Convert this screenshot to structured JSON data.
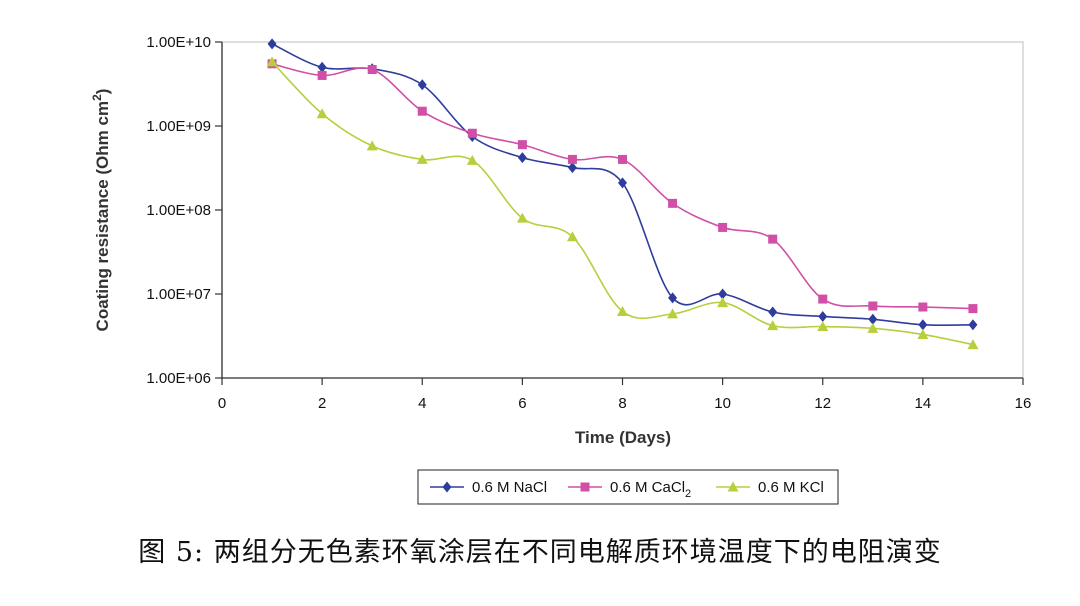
{
  "chart_data": {
    "type": "line",
    "xlabel": "Time (Days)",
    "ylabel_main": "Coating resistance (Ohm cm",
    "ylabel_sup": "2",
    "ylabel_end": ")",
    "y_scale": "log",
    "xlim": [
      0,
      16
    ],
    "ylim": [
      1000000,
      10000000000
    ],
    "x_ticks": [
      0,
      2,
      4,
      6,
      8,
      10,
      12,
      14,
      16
    ],
    "y_ticks": [
      {
        "value": 10000000000,
        "label": "1.00E+10"
      },
      {
        "value": 1000000000,
        "label": "1.00E+09"
      },
      {
        "value": 100000000,
        "label": "1.00E+08"
      },
      {
        "value": 10000000,
        "label": "1.00E+07"
      },
      {
        "value": 1000000,
        "label": "1.00E+06"
      }
    ],
    "grid": false,
    "legend_position": "bottom",
    "x": [
      1,
      2,
      3,
      4,
      5,
      6,
      7,
      8,
      9,
      10,
      11,
      12,
      13,
      14,
      15
    ],
    "series": [
      {
        "name": "0.6 M NaCl",
        "name_sub": "",
        "color": "#2e3d9c",
        "marker": "diamond",
        "values": [
          9500000000,
          5000000000,
          4800000000,
          3100000000,
          750000000,
          420000000,
          320000000,
          210000000,
          9000000,
          10000000,
          6100000,
          5400000,
          5000000,
          4300000,
          4300000
        ]
      },
      {
        "name": "0.6 M CaCl",
        "name_sub": "2",
        "color": "#d14fa6",
        "marker": "square",
        "values": [
          5500000000,
          4000000000,
          4700000000,
          1500000000,
          820000000,
          600000000,
          400000000,
          400000000,
          120000000,
          62000000,
          45000000,
          8700000,
          7200000,
          7000000,
          6700000
        ]
      },
      {
        "name": "0.6 M KCl",
        "name_sub": "",
        "color": "#b7cf3c",
        "marker": "triangle",
        "values": [
          5800000000,
          1400000000,
          580000000,
          400000000,
          390000000,
          80000000,
          48000000,
          6200000,
          5800000,
          7900000,
          4200000,
          4100000,
          3900000,
          3300000,
          2500000
        ]
      }
    ]
  },
  "caption": "图 5:  两组分无色素环氧涂层在不同电解质环境温度下的电阻演变"
}
